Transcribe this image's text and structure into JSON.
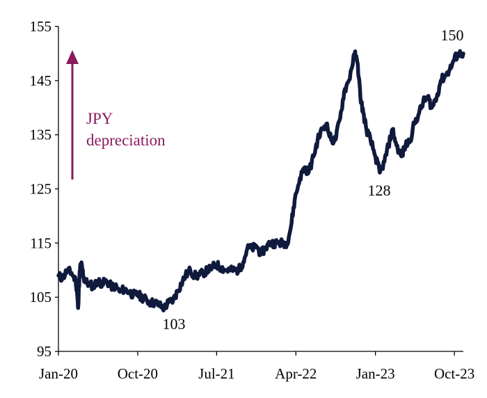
{
  "chart_data": {
    "type": "line",
    "title": "",
    "xlabel": "",
    "ylabel": "",
    "ylim": [
      95,
      155
    ],
    "yticks": [
      95,
      105,
      115,
      125,
      135,
      145,
      155
    ],
    "xtick_labels": [
      "Jan-20",
      "Oct-20",
      "Jul-21",
      "Apr-22",
      "Jan-23",
      "Oct-23"
    ],
    "xtick_dates": [
      "2020-01-01",
      "2020-10-01",
      "2021-07-01",
      "2022-04-01",
      "2023-01-01",
      "2023-10-01"
    ],
    "x_range": [
      "2020-01-01",
      "2023-11-01"
    ],
    "grid": false,
    "legend": "none",
    "line_color": "#0f1a3c",
    "series": [
      {
        "name": "",
        "x": [
          "2020-01-01",
          "2020-01-15",
          "2020-02-01",
          "2020-02-15",
          "2020-03-01",
          "2020-03-05",
          "2020-03-09",
          "2020-03-12",
          "2020-03-16",
          "2020-03-20",
          "2020-03-24",
          "2020-03-31",
          "2020-04-15",
          "2020-05-01",
          "2020-05-15",
          "2020-06-01",
          "2020-06-15",
          "2020-07-01",
          "2020-07-15",
          "2020-08-01",
          "2020-08-15",
          "2020-09-01",
          "2020-09-15",
          "2020-10-01",
          "2020-10-15",
          "2020-11-01",
          "2020-11-15",
          "2020-12-01",
          "2020-12-15",
          "2021-01-01",
          "2021-01-15",
          "2021-02-01",
          "2021-02-15",
          "2021-03-01",
          "2021-03-15",
          "2021-04-01",
          "2021-04-15",
          "2021-05-01",
          "2021-05-15",
          "2021-06-01",
          "2021-06-15",
          "2021-07-01",
          "2021-07-15",
          "2021-08-01",
          "2021-08-15",
          "2021-09-01",
          "2021-09-15",
          "2021-10-01",
          "2021-10-15",
          "2021-11-01",
          "2021-11-15",
          "2021-12-01",
          "2021-12-15",
          "2022-01-01",
          "2022-01-15",
          "2022-02-01",
          "2022-02-15",
          "2022-03-01",
          "2022-03-15",
          "2022-03-28",
          "2022-04-15",
          "2022-05-01",
          "2022-05-15",
          "2022-06-01",
          "2022-06-15",
          "2022-07-01",
          "2022-07-15",
          "2022-08-01",
          "2022-08-15",
          "2022-09-01",
          "2022-09-15",
          "2022-10-01",
          "2022-10-21",
          "2022-11-01",
          "2022-11-10",
          "2022-11-20",
          "2022-12-01",
          "2022-12-15",
          "2023-01-01",
          "2023-01-16",
          "2023-02-01",
          "2023-02-15",
          "2023-03-01",
          "2023-03-15",
          "2023-04-01",
          "2023-04-15",
          "2023-05-01",
          "2023-05-15",
          "2023-06-01",
          "2023-06-15",
          "2023-07-01",
          "2023-07-15",
          "2023-08-01",
          "2023-08-15",
          "2023-09-01",
          "2023-09-15",
          "2023-10-01",
          "2023-10-15",
          "2023-11-01"
        ],
        "values": [
          109,
          108.5,
          110,
          109.5,
          108,
          106,
          103,
          107,
          110.5,
          111,
          110,
          108,
          107.5,
          107,
          108,
          107.5,
          108,
          107,
          107,
          106,
          106.5,
          106,
          105.5,
          105.5,
          105,
          104.5,
          104,
          104,
          103.5,
          103,
          104,
          104.5,
          106,
          107.5,
          109,
          110,
          109,
          109,
          109.5,
          110,
          110.5,
          111,
          110.5,
          110,
          110,
          110,
          110,
          111.5,
          114,
          114,
          114.5,
          113,
          114,
          115,
          115,
          115,
          115,
          115,
          118,
          123,
          127,
          129,
          128,
          131,
          134,
          136,
          137,
          134,
          134,
          138,
          143,
          145,
          150,
          148,
          142,
          139,
          136,
          134,
          131,
          128,
          130,
          133,
          136,
          133,
          131,
          133,
          134,
          137,
          139,
          141,
          142,
          140,
          142,
          145,
          146,
          147,
          149,
          150,
          150
        ]
      }
    ]
  },
  "annotations": {
    "low_2020": "103",
    "low_2023": "128",
    "high_2023": "150",
    "arrow_note_line1": "JPY",
    "arrow_note_line2": "depreciation",
    "note_color": "#8b1a5e"
  }
}
